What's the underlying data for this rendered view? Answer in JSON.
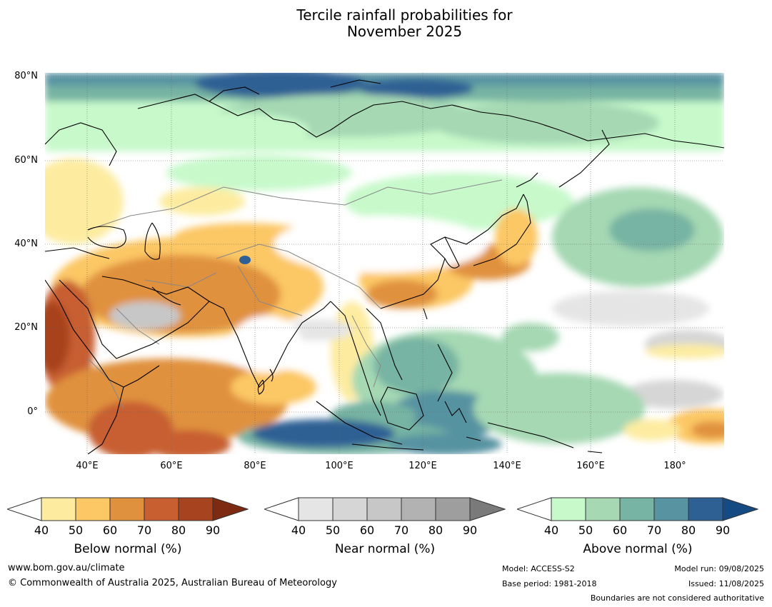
{
  "title_line1": "Tercile rainfall probabilities for",
  "title_line2": "November 2025",
  "lat_labels": [
    "80°N",
    "60°N",
    "40°N",
    "20°N",
    "0°"
  ],
  "lon_labels": [
    "40°E",
    "60°E",
    "80°E",
    "100°E",
    "120°E",
    "140°E",
    "160°E",
    "180°"
  ],
  "colorbars": [
    {
      "label": "Below normal (%)",
      "ticks": [
        "40",
        "50",
        "60",
        "70",
        "80",
        "90"
      ],
      "colors": [
        "#fdeca0",
        "#fcc765",
        "#e0913e",
        "#c75f30",
        "#a8431f",
        "#7c2a12"
      ]
    },
    {
      "label": "Near normal (%)",
      "ticks": [
        "40",
        "50",
        "60",
        "70",
        "80",
        "90"
      ],
      "colors": [
        "#e5e5e5",
        "#d6d6d6",
        "#c7c7c7",
        "#b2b2b2",
        "#9e9e9e",
        "#7a7a7a"
      ]
    },
    {
      "label": "Above normal (%)",
      "ticks": [
        "40",
        "50",
        "60",
        "70",
        "80",
        "90"
      ],
      "colors": [
        "#c7f9cb",
        "#a5d8b3",
        "#77b4a3",
        "#5793a1",
        "#2f6094",
        "#154a83"
      ]
    }
  ],
  "footer": {
    "website": "www.bom.gov.au/climate",
    "copyright": "© Commonwealth of Australia 2025, Australian Bureau of Meteorology",
    "model": "Model: ACCESS-S2",
    "base_period": "Base period: 1981-2018",
    "model_run": "Model run: 09/08/2025",
    "issued": "Issued: 11/08/2025",
    "boundaries_note": "Boundaries are not considered authoritative"
  }
}
